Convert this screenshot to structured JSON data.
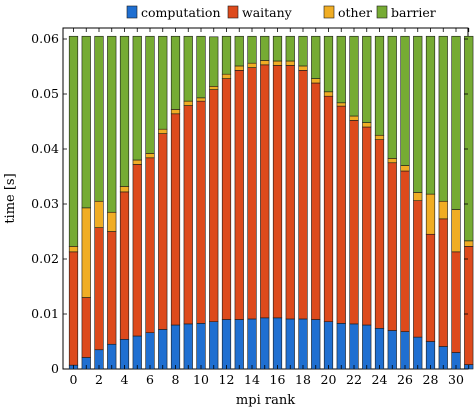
{
  "chart_data": {
    "type": "bar",
    "stacked": true,
    "xlabel": "mpi rank",
    "ylabel": "time [s]",
    "ylim": [
      0,
      0.062
    ],
    "yticks": [
      "0",
      "0.01",
      "0.02",
      "0.03",
      "0.04",
      "0.05",
      "0.06"
    ],
    "ytick_values": [
      0,
      0.01,
      0.02,
      0.03,
      0.04,
      0.05,
      0.06
    ],
    "xticks": [
      "0",
      "2",
      "4",
      "6",
      "8",
      "10",
      "12",
      "14",
      "16",
      "18",
      "20",
      "22",
      "24",
      "26",
      "28",
      "30"
    ],
    "xtick_values": [
      0,
      2,
      4,
      6,
      8,
      10,
      12,
      14,
      16,
      18,
      20,
      22,
      24,
      26,
      28,
      30
    ],
    "x": [
      0,
      1,
      2,
      3,
      4,
      5,
      6,
      7,
      8,
      9,
      10,
      11,
      12,
      13,
      14,
      15,
      16,
      17,
      18,
      19,
      20,
      21,
      22,
      23,
      24,
      25,
      26,
      27,
      28,
      29,
      30,
      31
    ],
    "grid": false,
    "legend_position": "top",
    "series": [
      {
        "name": "computation",
        "color": "#1f6fd1",
        "values": [
          0.0007,
          0.0021,
          0.0035,
          0.0045,
          0.0054,
          0.006,
          0.0066,
          0.0072,
          0.008,
          0.0082,
          0.0083,
          0.0086,
          0.009,
          0.009,
          0.0091,
          0.0093,
          0.0093,
          0.0091,
          0.0091,
          0.009,
          0.0086,
          0.0083,
          0.0082,
          0.008,
          0.0074,
          0.007,
          0.0068,
          0.0058,
          0.005,
          0.0041,
          0.003,
          0.0008
        ]
      },
      {
        "name": "waitany",
        "color": "#dd4a1c",
        "values": [
          0.0206,
          0.0109,
          0.0222,
          0.0205,
          0.0268,
          0.0312,
          0.0318,
          0.0356,
          0.0384,
          0.0397,
          0.0404,
          0.0422,
          0.0438,
          0.0453,
          0.0457,
          0.046,
          0.0459,
          0.0461,
          0.0452,
          0.043,
          0.041,
          0.0395,
          0.037,
          0.036,
          0.0343,
          0.0305,
          0.0292,
          0.0248,
          0.0195,
          0.0232,
          0.0183,
          0.0215
        ]
      },
      {
        "name": "other",
        "color": "#f0ad24",
        "values": [
          0.001,
          0.0163,
          0.0048,
          0.0035,
          0.001,
          0.0008,
          0.0008,
          0.0008,
          0.0008,
          0.0008,
          0.0006,
          0.0006,
          0.0008,
          0.0008,
          0.0008,
          0.0008,
          0.0008,
          0.0008,
          0.0008,
          0.0008,
          0.0008,
          0.0006,
          0.0008,
          0.0008,
          0.0008,
          0.0008,
          0.001,
          0.0015,
          0.0073,
          0.0032,
          0.0077,
          0.001
        ]
      },
      {
        "name": "barrier",
        "color": "#76ab33",
        "values": [
          0.0382,
          0.0312,
          0.03,
          0.032,
          0.0273,
          0.0225,
          0.0213,
          0.0169,
          0.0133,
          0.0118,
          0.0112,
          0.009,
          0.0069,
          0.0054,
          0.0049,
          0.0044,
          0.0045,
          0.0045,
          0.0054,
          0.0077,
          0.0101,
          0.0121,
          0.0145,
          0.0157,
          0.018,
          0.0222,
          0.0235,
          0.0284,
          0.0287,
          0.03,
          0.0315,
          0.0372
        ]
      }
    ]
  }
}
